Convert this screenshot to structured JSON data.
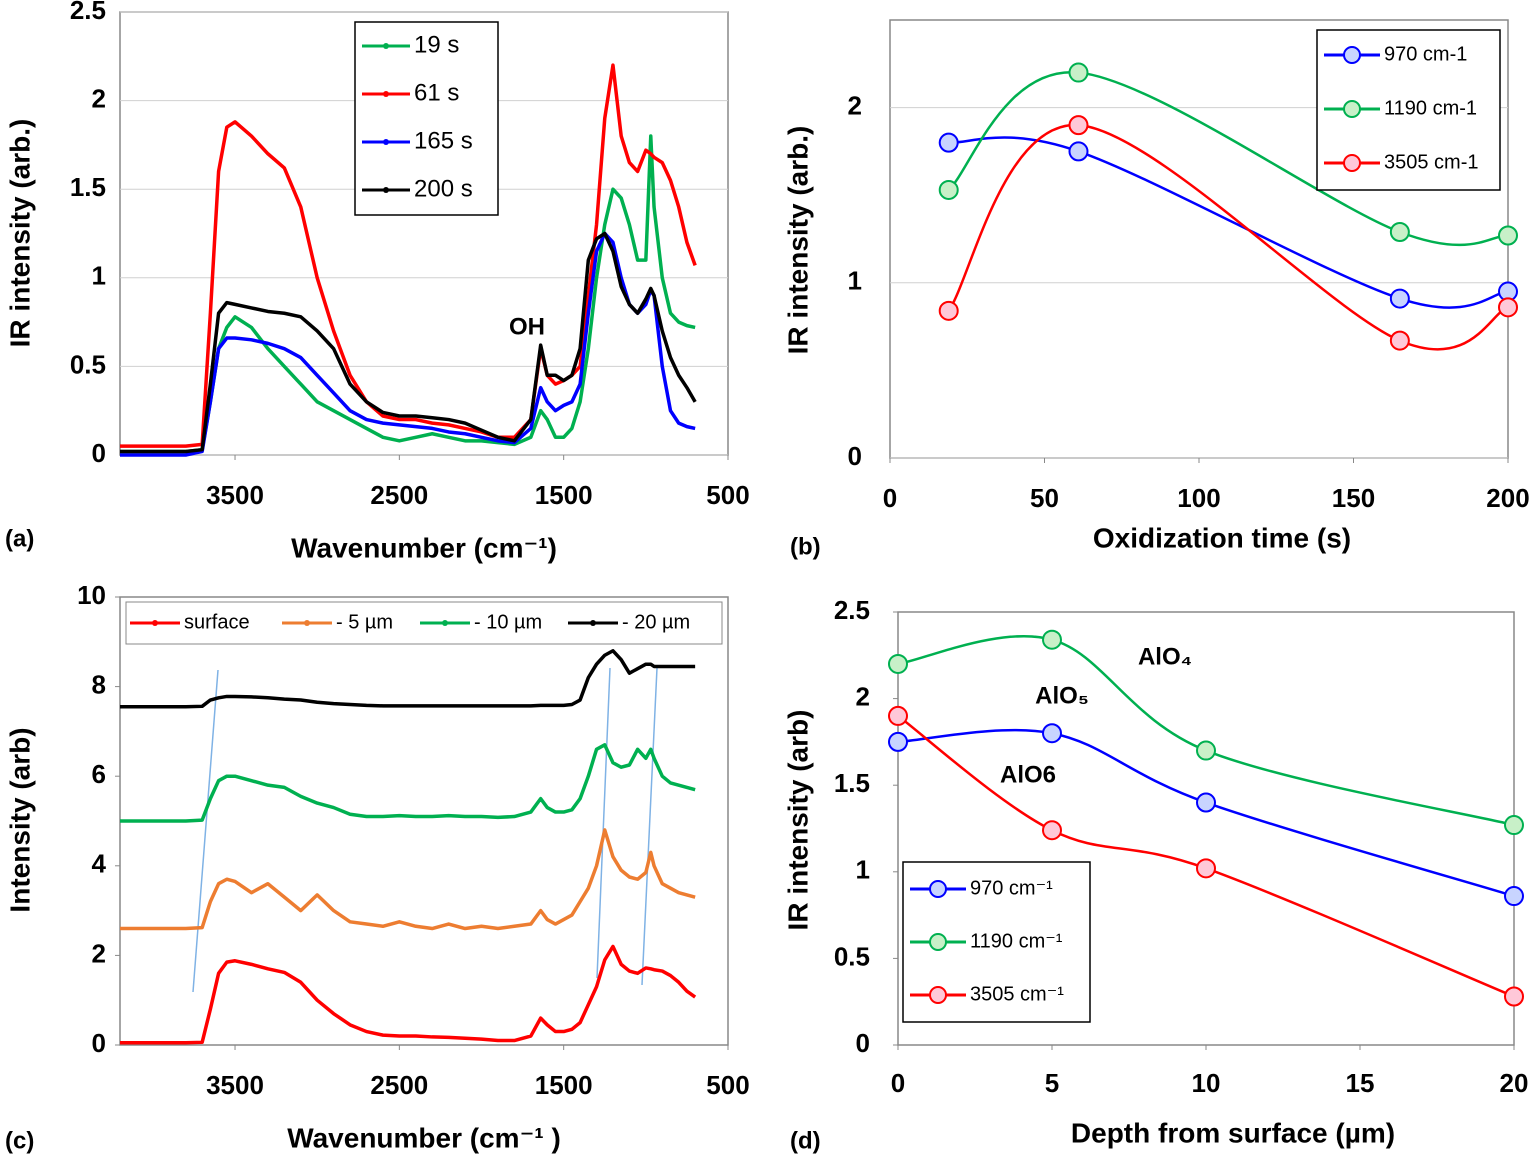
{
  "chart_data": [
    {
      "type": "line",
      "panel_label": "(a)",
      "xlabel": "Wavenumber (cm⁻¹)",
      "ylabel": "IR intensity (arb.)",
      "xlim": [
        4200,
        500
      ],
      "xticks": [
        3500,
        2500,
        1500,
        500
      ],
      "ylim": [
        0,
        2.5
      ],
      "yticks": [
        0,
        0.5,
        1,
        1.5,
        2,
        2.5
      ],
      "grid": true,
      "legend": "upper center",
      "smooth": false,
      "markers": false,
      "annotations": [
        "OH"
      ],
      "x": [
        4200,
        4000,
        3800,
        3700,
        3650,
        3600,
        3550,
        3500,
        3400,
        3300,
        3200,
        3100,
        3000,
        2900,
        2800,
        2700,
        2600,
        2500,
        2400,
        2300,
        2200,
        2100,
        2000,
        1900,
        1800,
        1700,
        1640,
        1600,
        1550,
        1500,
        1450,
        1400,
        1350,
        1300,
        1250,
        1200,
        1150,
        1100,
        1050,
        1000,
        970,
        950,
        900,
        850,
        800,
        750,
        700
      ],
      "series": [
        {
          "name": "19 s",
          "color": "#00b050",
          "values": [
            0.02,
            0.02,
            0.02,
            0.03,
            0.3,
            0.6,
            0.72,
            0.78,
            0.72,
            0.6,
            0.5,
            0.4,
            0.3,
            0.25,
            0.2,
            0.15,
            0.1,
            0.08,
            0.1,
            0.12,
            0.1,
            0.08,
            0.08,
            0.07,
            0.06,
            0.1,
            0.25,
            0.2,
            0.1,
            0.1,
            0.15,
            0.3,
            0.6,
            1.0,
            1.3,
            1.5,
            1.45,
            1.3,
            1.1,
            1.1,
            1.8,
            1.4,
            1.0,
            0.8,
            0.75,
            0.73,
            0.72
          ]
        },
        {
          "name": "61 s",
          "color": "#ff0000",
          "values": [
            0.05,
            0.05,
            0.05,
            0.06,
            0.8,
            1.6,
            1.85,
            1.88,
            1.8,
            1.7,
            1.62,
            1.4,
            1.0,
            0.7,
            0.45,
            0.3,
            0.22,
            0.2,
            0.2,
            0.18,
            0.17,
            0.15,
            0.13,
            0.1,
            0.1,
            0.2,
            0.6,
            0.45,
            0.4,
            0.42,
            0.45,
            0.5,
            0.9,
            1.3,
            1.9,
            2.2,
            1.8,
            1.65,
            1.6,
            1.72,
            1.7,
            1.68,
            1.65,
            1.55,
            1.4,
            1.2,
            1.07
          ]
        },
        {
          "name": "165 s",
          "color": "#0000ff",
          "values": [
            0,
            0,
            0,
            0.02,
            0.3,
            0.6,
            0.66,
            0.66,
            0.65,
            0.63,
            0.6,
            0.55,
            0.45,
            0.35,
            0.25,
            0.2,
            0.18,
            0.17,
            0.16,
            0.15,
            0.13,
            0.12,
            0.1,
            0.08,
            0.07,
            0.15,
            0.38,
            0.3,
            0.25,
            0.28,
            0.3,
            0.4,
            0.8,
            1.15,
            1.25,
            1.2,
            1.0,
            0.85,
            0.8,
            0.85,
            0.93,
            0.9,
            0.5,
            0.25,
            0.18,
            0.16,
            0.15
          ]
        },
        {
          "name": "200 s",
          "color": "#000000",
          "values": [
            0.02,
            0.02,
            0.02,
            0.03,
            0.4,
            0.8,
            0.86,
            0.85,
            0.83,
            0.81,
            0.8,
            0.78,
            0.7,
            0.6,
            0.4,
            0.3,
            0.24,
            0.22,
            0.22,
            0.21,
            0.2,
            0.18,
            0.14,
            0.1,
            0.08,
            0.2,
            0.62,
            0.45,
            0.45,
            0.42,
            0.45,
            0.6,
            1.1,
            1.22,
            1.25,
            1.15,
            0.95,
            0.85,
            0.8,
            0.88,
            0.94,
            0.9,
            0.7,
            0.55,
            0.45,
            0.38,
            0.3
          ]
        }
      ]
    },
    {
      "type": "line",
      "panel_label": "(b)",
      "xlabel": "Oxidization time (s)",
      "ylabel": "IR intensity (arb.)",
      "xlim": [
        0,
        200
      ],
      "xticks": [
        0,
        50,
        100,
        150,
        200
      ],
      "ylim": [
        0,
        2.5
      ],
      "yticks": [
        0,
        1,
        2
      ],
      "grid": true,
      "legend": "upper right",
      "smooth": true,
      "markers": true,
      "x": [
        19,
        61,
        165,
        200
      ],
      "series": [
        {
          "name": "970 cm-1",
          "color": "#0000ff",
          "marker_color": "#c8d4ff",
          "values": [
            1.8,
            1.75,
            0.91,
            0.95
          ]
        },
        {
          "name": "1190 cm-1",
          "color": "#00b050",
          "marker_color": "#c8f0c8",
          "values": [
            1.53,
            2.2,
            1.29,
            1.27
          ]
        },
        {
          "name": "3505 cm-1",
          "color": "#ff0000",
          "marker_color": "#ffc8d8",
          "values": [
            0.84,
            1.9,
            0.67,
            0.86
          ]
        }
      ]
    },
    {
      "type": "line",
      "panel_label": "(c)",
      "xlabel": "Wavenumber (cm⁻¹ )",
      "ylabel": "Intensity (arb)",
      "xlim": [
        4200,
        500
      ],
      "xticks": [
        3500,
        2500,
        1500,
        500
      ],
      "ylim": [
        0,
        10
      ],
      "yticks": [
        0,
        2,
        4,
        6,
        8,
        10
      ],
      "grid": false,
      "legend": "top row",
      "smooth": false,
      "markers": false,
      "x": [
        4200,
        4000,
        3800,
        3700,
        3650,
        3600,
        3550,
        3500,
        3400,
        3300,
        3200,
        3100,
        3000,
        2900,
        2800,
        2700,
        2600,
        2500,
        2400,
        2300,
        2200,
        2100,
        2000,
        1900,
        1800,
        1700,
        1640,
        1600,
        1550,
        1500,
        1450,
        1400,
        1350,
        1300,
        1250,
        1200,
        1150,
        1100,
        1050,
        1000,
        970,
        950,
        900,
        850,
        800,
        750,
        700
      ],
      "series": [
        {
          "name": "surface",
          "color": "#ff0000",
          "values": [
            0.05,
            0.05,
            0.05,
            0.06,
            0.8,
            1.6,
            1.85,
            1.88,
            1.8,
            1.7,
            1.62,
            1.4,
            1.0,
            0.7,
            0.45,
            0.3,
            0.22,
            0.2,
            0.2,
            0.18,
            0.17,
            0.15,
            0.13,
            0.1,
            0.1,
            0.2,
            0.6,
            0.45,
            0.3,
            0.3,
            0.35,
            0.5,
            0.9,
            1.3,
            1.9,
            2.2,
            1.8,
            1.65,
            1.6,
            1.72,
            1.7,
            1.68,
            1.65,
            1.55,
            1.4,
            1.2,
            1.07
          ]
        },
        {
          "name": "- 5 µm",
          "color": "#ed7d31",
          "values": [
            2.6,
            2.6,
            2.6,
            2.62,
            3.2,
            3.6,
            3.7,
            3.65,
            3.4,
            3.6,
            3.3,
            3.0,
            3.35,
            3.0,
            2.75,
            2.7,
            2.65,
            2.75,
            2.65,
            2.6,
            2.7,
            2.6,
            2.65,
            2.6,
            2.65,
            2.7,
            3.0,
            2.8,
            2.7,
            2.8,
            2.9,
            3.2,
            3.5,
            4.0,
            4.8,
            4.2,
            3.9,
            3.75,
            3.7,
            3.85,
            4.3,
            4.0,
            3.6,
            3.5,
            3.4,
            3.35,
            3.3
          ]
        },
        {
          "name": "- 10 µm",
          "color": "#00b050",
          "values": [
            5.0,
            5.0,
            5.0,
            5.02,
            5.5,
            5.9,
            6.0,
            6.0,
            5.9,
            5.8,
            5.75,
            5.55,
            5.4,
            5.3,
            5.15,
            5.1,
            5.1,
            5.12,
            5.1,
            5.1,
            5.12,
            5.1,
            5.1,
            5.08,
            5.1,
            5.2,
            5.5,
            5.3,
            5.2,
            5.2,
            5.25,
            5.5,
            6.0,
            6.6,
            6.7,
            6.3,
            6.2,
            6.25,
            6.6,
            6.4,
            6.6,
            6.4,
            6.0,
            5.85,
            5.8,
            5.75,
            5.7
          ]
        },
        {
          "name": "- 20 µm",
          "color": "#000000",
          "values": [
            7.55,
            7.55,
            7.55,
            7.56,
            7.7,
            7.75,
            7.78,
            7.78,
            7.77,
            7.75,
            7.72,
            7.7,
            7.65,
            7.62,
            7.6,
            7.58,
            7.57,
            7.57,
            7.57,
            7.57,
            7.57,
            7.57,
            7.57,
            7.57,
            7.57,
            7.57,
            7.58,
            7.58,
            7.58,
            7.58,
            7.6,
            7.7,
            8.2,
            8.5,
            8.7,
            8.8,
            8.6,
            8.3,
            8.4,
            8.5,
            8.5,
            8.45,
            8.45,
            8.45,
            8.45,
            8.45,
            8.45
          ]
        }
      ]
    },
    {
      "type": "line",
      "panel_label": "(d)",
      "xlabel": "Depth from surface  (µm)",
      "ylabel": "IR intensity (arb)",
      "xlim": [
        0,
        20
      ],
      "xticks": [
        0,
        5,
        10,
        15,
        20
      ],
      "ylim": [
        0,
        2.5
      ],
      "yticks": [
        0,
        0.5,
        1,
        1.5,
        2,
        2.5
      ],
      "grid": false,
      "legend": "lower left",
      "smooth": true,
      "markers": true,
      "annotations": [
        "AlO₄",
        "AlO₅",
        "AlO6"
      ],
      "x": [
        0,
        5,
        10,
        20
      ],
      "series": [
        {
          "name": "970 cm⁻¹",
          "color": "#0000ff",
          "marker_color": "#c8d4ff",
          "values": [
            1.75,
            1.8,
            1.4,
            0.86
          ]
        },
        {
          "name": "1190 cm⁻¹",
          "color": "#00b050",
          "marker_color": "#c8f0c8",
          "values": [
            2.2,
            2.34,
            1.7,
            1.27
          ]
        },
        {
          "name": "3505 cm⁻¹",
          "color": "#ff0000",
          "marker_color": "#ffc8d8",
          "values": [
            1.9,
            1.24,
            1.02,
            0.28
          ]
        }
      ]
    }
  ]
}
